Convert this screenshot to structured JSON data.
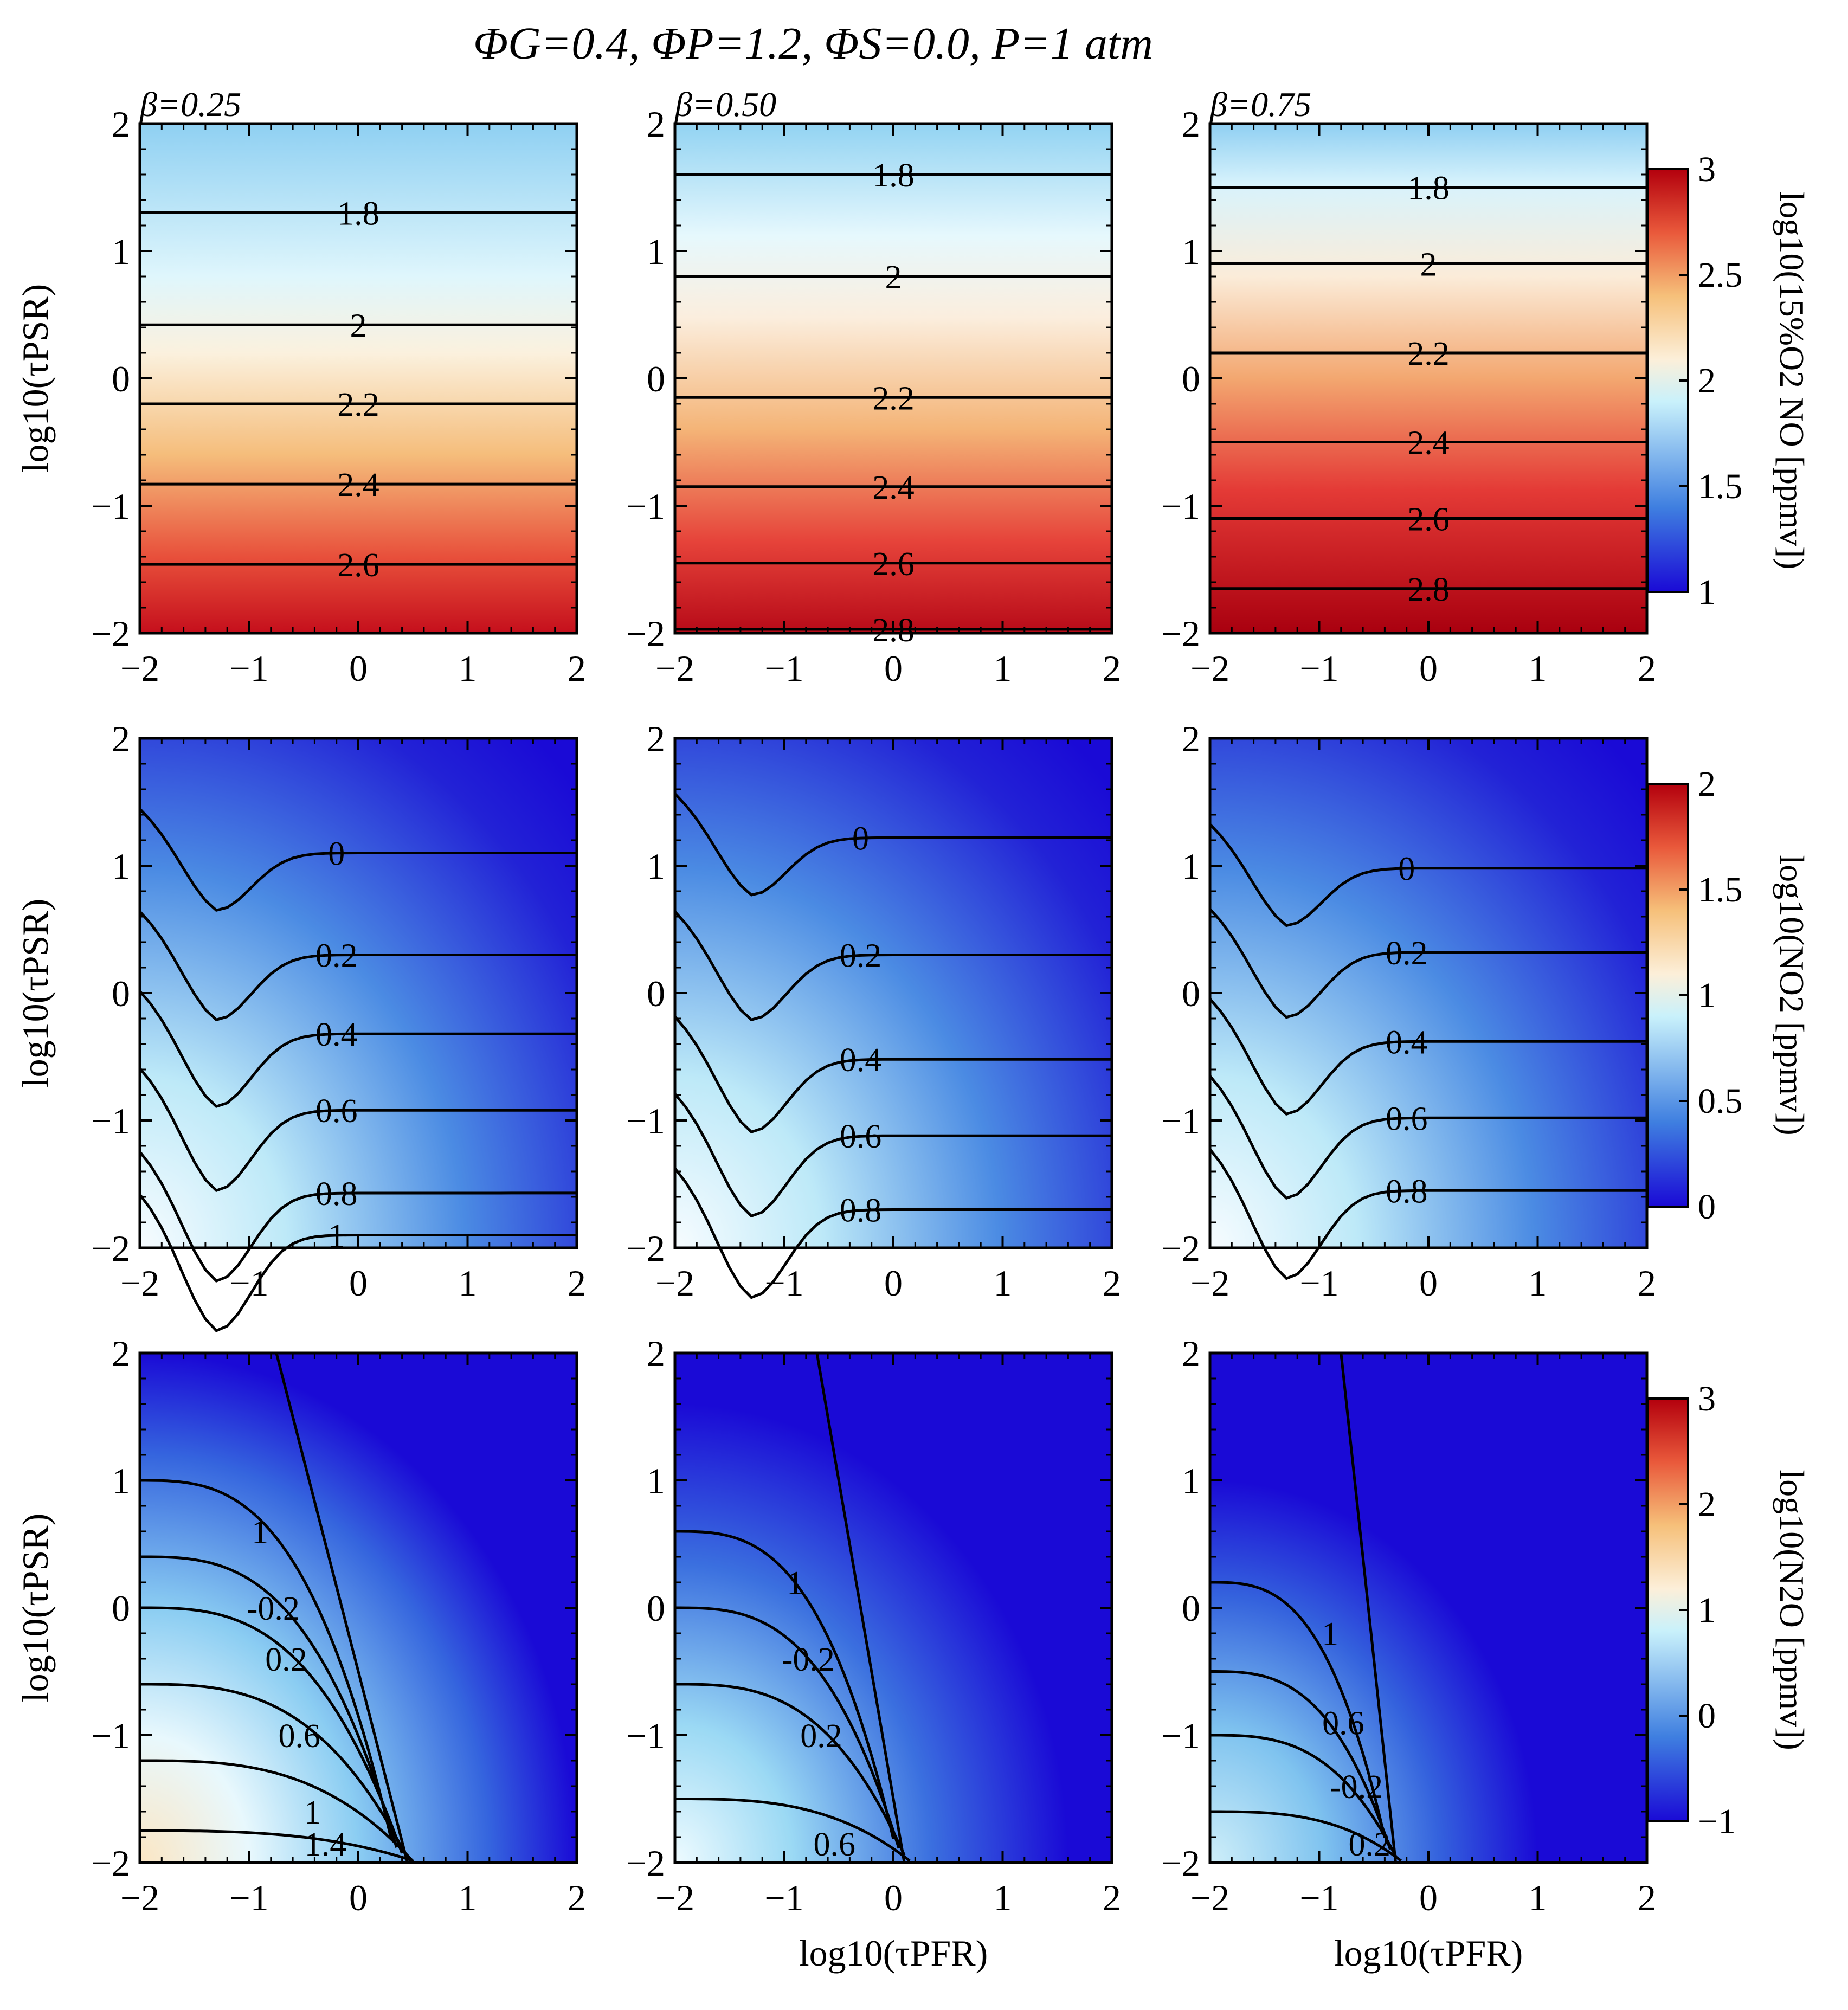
{
  "chart_data": {
    "type": "heatmap",
    "title": "ΦG=0.4, ΦP=1.2, ΦS=0.0, P=1 atm",
    "xlabel": "log10(τPFR)",
    "ylabel": "log10(τPSR)",
    "xlim": [
      -2,
      2
    ],
    "ylim": [
      -2,
      2
    ],
    "x_ticks": [
      "−2",
      "−1",
      "0",
      "1",
      "2"
    ],
    "y_ticks": [
      "−2",
      "−1",
      "0",
      "1",
      "2"
    ],
    "columns": [
      "β=0.25",
      "β=0.50",
      "β=0.75"
    ],
    "colormap": [
      "#1a0ad6",
      "#3f7fe0",
      "#c9f1fb",
      "#fcefd9",
      "#f6c07a",
      "#e9593b",
      "#b3000d"
    ],
    "rows": [
      {
        "species": "NO",
        "colorbar_label": "log10(15%O2 NO [ppmv])",
        "clim": [
          1,
          3
        ],
        "colorbar_ticks": [
          "1",
          "1.5",
          "2",
          "2.5",
          "3"
        ],
        "panels": [
          {
            "beta": "β=0.25",
            "contours": [
              {
                "level": "1.8",
                "y": 1.3
              },
              {
                "level": "2",
                "y": 0.42
              },
              {
                "level": "2.2",
                "y": -0.2
              },
              {
                "level": "2.4",
                "y": -0.83
              },
              {
                "level": "2.6",
                "y": -1.46
              }
            ]
          },
          {
            "beta": "β=0.50",
            "contours": [
              {
                "level": "1.8",
                "y": 1.6
              },
              {
                "level": "2",
                "y": 0.8
              },
              {
                "level": "2.2",
                "y": -0.15
              },
              {
                "level": "2.4",
                "y": -0.85
              },
              {
                "level": "2.6",
                "y": -1.45
              },
              {
                "level": "2.8",
                "y": -1.97
              }
            ]
          },
          {
            "beta": "β=0.75",
            "contours": [
              {
                "level": "1.8",
                "y": 1.5
              },
              {
                "level": "2",
                "y": 0.9
              },
              {
                "level": "2.2",
                "y": 0.2
              },
              {
                "level": "2.4",
                "y": -0.5
              },
              {
                "level": "2.6",
                "y": -1.1
              },
              {
                "level": "2.8",
                "y": -1.65
              }
            ]
          }
        ]
      },
      {
        "species": "NO2",
        "colorbar_label": "log10(NO2 [ppmv])",
        "clim": [
          0,
          2
        ],
        "colorbar_ticks": [
          "0",
          "0.5",
          "1",
          "1.5",
          "2"
        ],
        "panels": [
          {
            "beta": "β=0.25",
            "contours": [
              {
                "level": "0",
                "y": 1.1
              },
              {
                "level": "0.2",
                "y": 0.3
              },
              {
                "level": "0.4",
                "y": -0.32
              },
              {
                "level": "0.6",
                "y": -0.92
              },
              {
                "level": "0.8",
                "y": -1.57
              },
              {
                "level": "1",
                "y": -1.9
              }
            ]
          },
          {
            "beta": "β=0.50",
            "contours": [
              {
                "level": "0",
                "y": 1.22
              },
              {
                "level": "0.2",
                "y": 0.3
              },
              {
                "level": "0.4",
                "y": -0.52
              },
              {
                "level": "0.6",
                "y": -1.12
              },
              {
                "level": "0.8",
                "y": -1.7
              }
            ]
          },
          {
            "beta": "β=0.75",
            "contours": [
              {
                "level": "0",
                "y": 0.98
              },
              {
                "level": "0.2",
                "y": 0.32
              },
              {
                "level": "0.4",
                "y": -0.38
              },
              {
                "level": "0.6",
                "y": -0.98
              },
              {
                "level": "0.8",
                "y": -1.55
              }
            ]
          }
        ]
      },
      {
        "species": "N2O",
        "colorbar_label": "log10(N2O [ppmv])",
        "clim": [
          -1,
          3
        ],
        "colorbar_ticks": [
          "−1",
          "0",
          "1",
          "2",
          "3"
        ],
        "panels": [
          {
            "beta": "β=0.25",
            "contours": [
              {
                "level": "1",
                "y": 1.0
              },
              {
                "level": "-0.2",
                "y": 0.4
              },
              {
                "level": "0.2",
                "y": 0.0
              },
              {
                "level": "0.6",
                "y": -0.6
              },
              {
                "level": "1",
                "y": -1.2
              },
              {
                "level": "1.4",
                "y": -1.75
              }
            ]
          },
          {
            "beta": "β=0.50",
            "contours": [
              {
                "level": "1",
                "y": 0.6
              },
              {
                "level": "-0.2",
                "y": 0.0
              },
              {
                "level": "0.2",
                "y": -0.6
              },
              {
                "level": "0.6",
                "y": -1.5
              }
            ]
          },
          {
            "beta": "β=0.75",
            "contours": [
              {
                "level": "1",
                "y": 0.2
              },
              {
                "level": "0.6",
                "y": -0.5
              },
              {
                "level": "-0.2",
                "y": -1.0
              },
              {
                "level": "0.2",
                "y": -1.6
              }
            ]
          }
        ]
      }
    ]
  }
}
